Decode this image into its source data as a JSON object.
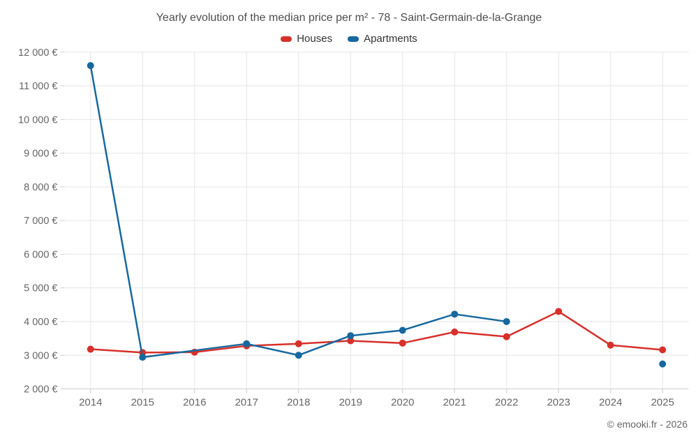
{
  "header": {
    "title": "Yearly evolution of the median price per m² - 78 - Saint-Germain-de-la-Grange"
  },
  "footer": {
    "credit": "© emooki.fr - 2026"
  },
  "style": {
    "grid_color": "#e6e6e6",
    "tick_color": "#cccccc",
    "axis_label_color": "#666666"
  },
  "chart_data": {
    "type": "line",
    "title": "Yearly evolution of the median price per m² - 78 - Saint-Germain-de-la-Grange",
    "categories": [
      "2014",
      "2015",
      "2016",
      "2017",
      "2018",
      "2019",
      "2020",
      "2021",
      "2022",
      "2023",
      "2024",
      "2025"
    ],
    "series": [
      {
        "name": "Houses",
        "color": "#d7302b",
        "values": [
          3180,
          3080,
          3090,
          3280,
          3340,
          3430,
          3360,
          3690,
          3550,
          4300,
          3300,
          3160
        ]
      },
      {
        "name": "Apartments",
        "color": "#17689e",
        "values": [
          11600,
          2940,
          null,
          3340,
          3000,
          3580,
          3740,
          4220,
          4000,
          null,
          null,
          2740
        ]
      }
    ],
    "ylim": [
      2000,
      12000
    ],
    "y_tick_step": 1000,
    "y_tick_suffix": " €",
    "grid": true,
    "legend_position": "top",
    "max_gap_connect": 2
  }
}
